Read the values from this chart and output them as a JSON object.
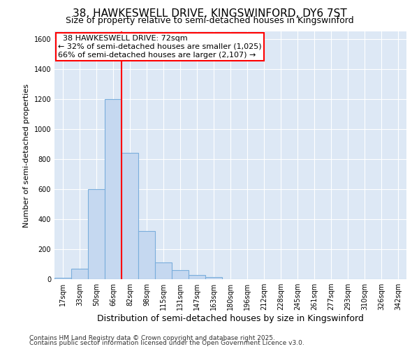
{
  "title": "38, HAWKESWELL DRIVE, KINGSWINFORD, DY6 7ST",
  "subtitle": "Size of property relative to semi-detached houses in Kingswinford",
  "xlabel": "Distribution of semi-detached houses by size in Kingswinford",
  "ylabel": "Number of semi-detached properties",
  "categories": [
    "17sqm",
    "33sqm",
    "50sqm",
    "66sqm",
    "82sqm",
    "98sqm",
    "115sqm",
    "131sqm",
    "147sqm",
    "163sqm",
    "180sqm",
    "196sqm",
    "212sqm",
    "228sqm",
    "245sqm",
    "261sqm",
    "277sqm",
    "293sqm",
    "310sqm",
    "326sqm",
    "342sqm"
  ],
  "values": [
    10,
    70,
    600,
    1200,
    840,
    320,
    110,
    60,
    30,
    15,
    0,
    0,
    0,
    0,
    0,
    0,
    0,
    0,
    0,
    0,
    0
  ],
  "bar_color": "#c5d8f0",
  "bar_edgecolor": "#7aaedc",
  "vline_index": 3,
  "property_label": "38 HAWKESWELL DRIVE: 72sqm",
  "smaller_text": "← 32% of semi-detached houses are smaller (1,025)",
  "larger_text": "66% of semi-detached houses are larger (2,107) →",
  "footer_line1": "Contains HM Land Registry data © Crown copyright and database right 2025.",
  "footer_line2": "Contains public sector information licensed under the Open Government Licence v3.0.",
  "ylim": [
    0,
    1650
  ],
  "yticks": [
    0,
    200,
    400,
    600,
    800,
    1000,
    1200,
    1400,
    1600
  ],
  "bg_color": "#ffffff",
  "plot_bg_color": "#dde8f5",
  "grid_color": "#ffffff",
  "title_fontsize": 11,
  "subtitle_fontsize": 9,
  "ylabel_fontsize": 8,
  "xlabel_fontsize": 9,
  "tick_fontsize": 7,
  "annotation_fontsize": 8,
  "footer_fontsize": 6.5
}
